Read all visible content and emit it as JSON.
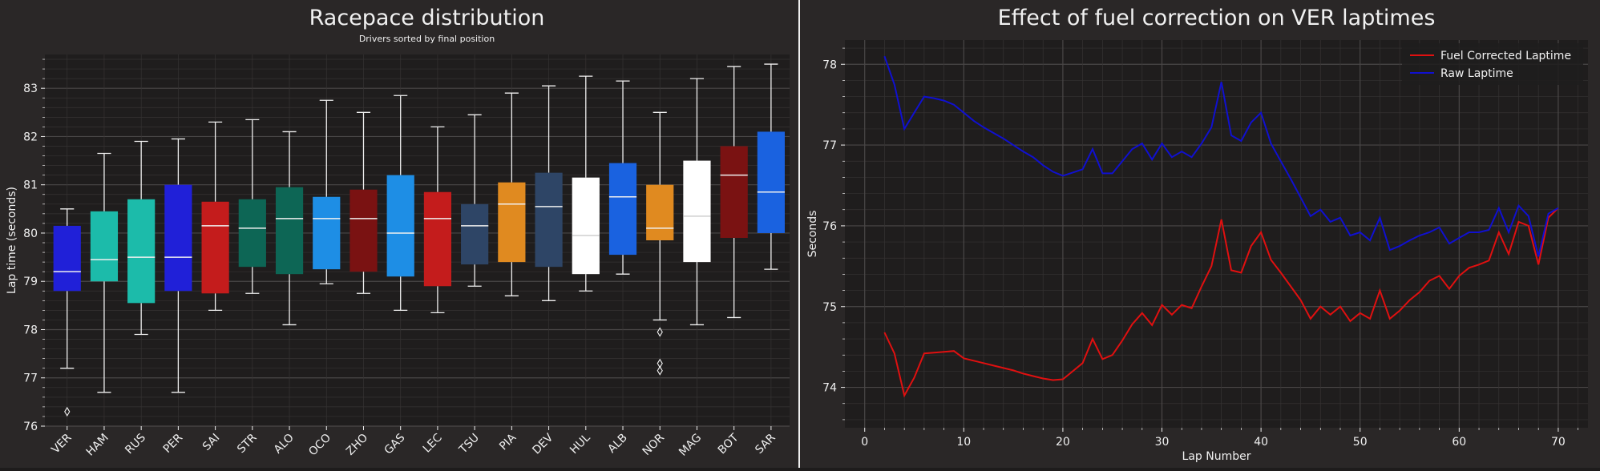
{
  "colors": {
    "figure_bg": "#2a2727",
    "axes_bg": "#1f1d1d",
    "text": "#f0f0f0",
    "grid_major": "#4a4747",
    "grid_minor": "#363333",
    "whisker": "#f0f0f0",
    "median": "#f0f0f0"
  },
  "chart_data": [
    {
      "type": "box",
      "title": "Racepace distribution",
      "subtitle": "Drivers sorted by final position",
      "xlabel": "",
      "ylabel": "Lap time (seconds)",
      "ylim": [
        76.0,
        83.7
      ],
      "yticks": [
        76,
        77,
        78,
        79,
        80,
        81,
        82,
        83
      ],
      "grid": true,
      "categories": [
        "VER",
        "HAM",
        "RUS",
        "PER",
        "SAI",
        "STR",
        "ALO",
        "OCO",
        "ZHO",
        "GAS",
        "LEC",
        "TSU",
        "PIA",
        "DEV",
        "HUL",
        "ALB",
        "NOR",
        "MAG",
        "BOT",
        "SAR"
      ],
      "boxes": [
        {
          "name": "VER",
          "color": "#2020d8",
          "whislo": 77.2,
          "q1": 78.8,
          "med": 79.2,
          "q3": 80.15,
          "whishi": 80.5,
          "fliers": [
            76.3
          ]
        },
        {
          "name": "HAM",
          "color": "#1cbbaa",
          "whislo": 76.7,
          "q1": 79.0,
          "med": 79.45,
          "q3": 80.45,
          "whishi": 81.65,
          "fliers": []
        },
        {
          "name": "RUS",
          "color": "#1cbbaa",
          "whislo": 77.9,
          "q1": 78.55,
          "med": 79.5,
          "q3": 80.7,
          "whishi": 81.9,
          "fliers": []
        },
        {
          "name": "PER",
          "color": "#2020d8",
          "whislo": 76.7,
          "q1": 78.8,
          "med": 79.5,
          "q3": 81.0,
          "whishi": 81.95,
          "fliers": []
        },
        {
          "name": "SAI",
          "color": "#c41c1c",
          "whislo": 78.4,
          "q1": 78.75,
          "med": 80.15,
          "q3": 80.65,
          "whishi": 82.3,
          "fliers": []
        },
        {
          "name": "STR",
          "color": "#0d6655",
          "whislo": 78.75,
          "q1": 79.3,
          "med": 80.1,
          "q3": 80.7,
          "whishi": 82.35,
          "fliers": []
        },
        {
          "name": "ALO",
          "color": "#0d6655",
          "whislo": 78.1,
          "q1": 79.15,
          "med": 80.3,
          "q3": 80.95,
          "whishi": 82.1,
          "fliers": []
        },
        {
          "name": "OCO",
          "color": "#1e8ee5",
          "whislo": 78.95,
          "q1": 79.25,
          "med": 80.3,
          "q3": 80.75,
          "whishi": 82.75,
          "fliers": []
        },
        {
          "name": "ZHO",
          "color": "#7a1212",
          "whislo": 78.75,
          "q1": 79.2,
          "med": 80.3,
          "q3": 80.9,
          "whishi": 82.5,
          "fliers": []
        },
        {
          "name": "GAS",
          "color": "#1e8ee5",
          "whislo": 78.4,
          "q1": 79.1,
          "med": 80.0,
          "q3": 81.2,
          "whishi": 82.85,
          "fliers": []
        },
        {
          "name": "LEC",
          "color": "#c41c1c",
          "whislo": 78.35,
          "q1": 78.9,
          "med": 80.3,
          "q3": 80.85,
          "whishi": 82.2,
          "fliers": []
        },
        {
          "name": "TSU",
          "color": "#2e4566",
          "whislo": 78.9,
          "q1": 79.35,
          "med": 80.15,
          "q3": 80.6,
          "whishi": 82.45,
          "fliers": []
        },
        {
          "name": "PIA",
          "color": "#e08a20",
          "whislo": 78.7,
          "q1": 79.4,
          "med": 80.6,
          "q3": 81.05,
          "whishi": 82.9,
          "fliers": []
        },
        {
          "name": "DEV",
          "color": "#2e4566",
          "whislo": 78.6,
          "q1": 79.3,
          "med": 80.55,
          "q3": 81.25,
          "whishi": 83.05,
          "fliers": []
        },
        {
          "name": "HUL",
          "color": "#ffffff",
          "whislo": 78.8,
          "q1": 79.15,
          "med": 79.95,
          "q3": 81.15,
          "whishi": 83.25,
          "fliers": []
        },
        {
          "name": "ALB",
          "color": "#1a62e0",
          "whislo": 79.15,
          "q1": 79.55,
          "med": 80.75,
          "q3": 81.45,
          "whishi": 83.15,
          "fliers": []
        },
        {
          "name": "NOR",
          "color": "#e08a20",
          "whislo": 78.2,
          "q1": 79.85,
          "med": 80.1,
          "q3": 81.0,
          "whishi": 82.5,
          "fliers": [
            77.95,
            77.3,
            77.15
          ]
        },
        {
          "name": "MAG",
          "color": "#ffffff",
          "whislo": 78.1,
          "q1": 79.4,
          "med": 80.35,
          "q3": 81.5,
          "whishi": 83.2,
          "fliers": []
        },
        {
          "name": "BOT",
          "color": "#7a1212",
          "whislo": 78.25,
          "q1": 79.9,
          "med": 81.2,
          "q3": 81.8,
          "whishi": 83.45,
          "fliers": []
        },
        {
          "name": "SAR",
          "color": "#1a62e0",
          "whislo": 79.25,
          "q1": 80.0,
          "med": 80.85,
          "q3": 82.1,
          "whishi": 83.5,
          "fliers": []
        }
      ]
    },
    {
      "type": "line",
      "title": "Effect of fuel correction on VER laptimes",
      "xlabel": "Lap Number",
      "ylabel": "Seconds",
      "xlim": [
        -2,
        73
      ],
      "ylim": [
        73.5,
        78.3
      ],
      "xticks": [
        0,
        10,
        20,
        30,
        40,
        50,
        60,
        70
      ],
      "yticks": [
        74,
        75,
        76,
        77,
        78
      ],
      "grid": true,
      "legend_position": "top-right",
      "x": [
        2,
        3,
        4,
        5,
        6,
        7,
        8,
        9,
        10,
        11,
        12,
        13,
        14,
        15,
        16,
        17,
        18,
        19,
        20,
        21,
        22,
        23,
        24,
        25,
        26,
        27,
        28,
        29,
        30,
        31,
        32,
        33,
        34,
        35,
        36,
        37,
        38,
        39,
        40,
        41,
        42,
        43,
        44,
        45,
        46,
        47,
        48,
        49,
        50,
        51,
        52,
        53,
        54,
        55,
        56,
        57,
        58,
        59,
        60,
        61,
        62,
        63,
        64,
        65,
        66,
        67,
        68,
        69,
        70
      ],
      "series": [
        {
          "name": "Fuel Corrected Laptime",
          "color": "#e01010",
          "values": [
            74.68,
            74.42,
            73.9,
            74.12,
            74.42,
            74.43,
            74.44,
            74.45,
            74.36,
            74.33,
            74.3,
            74.27,
            74.24,
            74.21,
            74.17,
            74.14,
            74.11,
            74.09,
            74.1,
            74.2,
            74.3,
            74.6,
            74.35,
            74.4,
            74.58,
            74.78,
            74.92,
            74.77,
            75.02,
            74.9,
            75.02,
            74.98,
            75.25,
            75.5,
            76.08,
            75.45,
            75.42,
            75.75,
            75.92,
            75.58,
            75.42,
            75.25,
            75.08,
            74.85,
            75.0,
            74.9,
            75.0,
            74.82,
            74.92,
            74.85,
            75.2,
            74.85,
            74.95,
            75.08,
            75.18,
            75.32,
            75.38,
            75.22,
            75.38,
            75.48,
            75.52,
            75.57,
            75.92,
            75.65,
            76.05,
            76.0,
            75.52,
            76.1,
            76.22
          ]
        },
        {
          "name": "Raw Laptime",
          "color": "#1010d0",
          "values": [
            78.1,
            77.75,
            77.2,
            77.4,
            77.6,
            77.58,
            77.55,
            77.5,
            77.4,
            77.3,
            77.22,
            77.15,
            77.08,
            77.0,
            76.92,
            76.85,
            76.75,
            76.67,
            76.62,
            76.66,
            76.7,
            76.95,
            76.65,
            76.65,
            76.8,
            76.95,
            77.02,
            76.82,
            77.02,
            76.85,
            76.92,
            76.85,
            77.02,
            77.22,
            77.78,
            77.12,
            77.05,
            77.28,
            77.4,
            77.02,
            76.8,
            76.58,
            76.35,
            76.12,
            76.2,
            76.05,
            76.1,
            75.88,
            75.92,
            75.82,
            76.1,
            75.7,
            75.75,
            75.82,
            75.88,
            75.92,
            75.98,
            75.78,
            75.85,
            75.92,
            75.92,
            75.95,
            76.22,
            75.92,
            76.25,
            76.12,
            75.62,
            76.15,
            76.22
          ]
        }
      ]
    }
  ]
}
